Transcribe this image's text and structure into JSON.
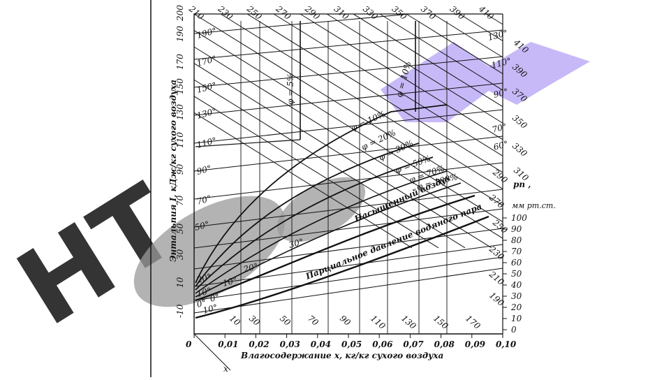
{
  "colors": {
    "ink": "#111111",
    "watermark_gray": "#9a9a9a",
    "watermark_lavender": "#b9a7f5",
    "background": "#ffffff"
  },
  "diagram": {
    "y_axis_label": "Энтальпия I, кДж/кг сухого воздуха",
    "x_axis_label": "Влагосодержание x, кг/кг сухого воздуха",
    "x_axis_symbol": "x",
    "x_ticks": [
      "0",
      "0,01",
      "0,02",
      "0,03",
      "0,04",
      "0,05",
      "0,06",
      "0,07",
      "0,08",
      "0,09",
      "0,10"
    ],
    "left_enthalpy_ticks": [
      "200",
      "190",
      "170",
      "150",
      "130",
      "110",
      "90",
      "70",
      "50",
      "30",
      "10",
      "-10"
    ],
    "top_enthalpy_ticks": [
      "210",
      "230",
      "250",
      "270",
      "290",
      "310",
      "330",
      "350",
      "370",
      "390",
      "410"
    ],
    "right_enthalpy_ticks": [
      "410",
      "390",
      "370",
      "350",
      "330",
      "310",
      "290",
      "270",
      "250",
      "230",
      "210",
      "190",
      "170",
      "150",
      "130",
      "110",
      "90",
      "70",
      "50",
      "30",
      "10"
    ],
    "temperature_labels": [
      "190°",
      "170°",
      "150°",
      "130°",
      "110°",
      "90°",
      "70°",
      "50°",
      "20°",
      "10°",
      "0°",
      "-10°",
      "130°",
      "110°",
      "90°",
      "70°",
      "60°",
      "30°",
      "20°",
      "10°",
      "0°"
    ],
    "phi_labels": [
      "φ = 5%",
      "φ = 10%",
      "φ = 10%",
      "φ = 20%",
      "φ = 30%",
      "φ = 50%",
      "φ = 70%",
      "φ = 100%"
    ],
    "curve_labels": {
      "saturated": "Насыщенный воздух",
      "partial_pressure": "Парциальное давление водяного пара"
    },
    "pressure_axis": {
      "title": "pп ,",
      "unit": "мм рт.ст.",
      "ticks": [
        "100",
        "90",
        "80",
        "70",
        "60",
        "50",
        "40",
        "30",
        "20",
        "10",
        "0"
      ]
    }
  },
  "watermark": {
    "text": "НТ"
  }
}
